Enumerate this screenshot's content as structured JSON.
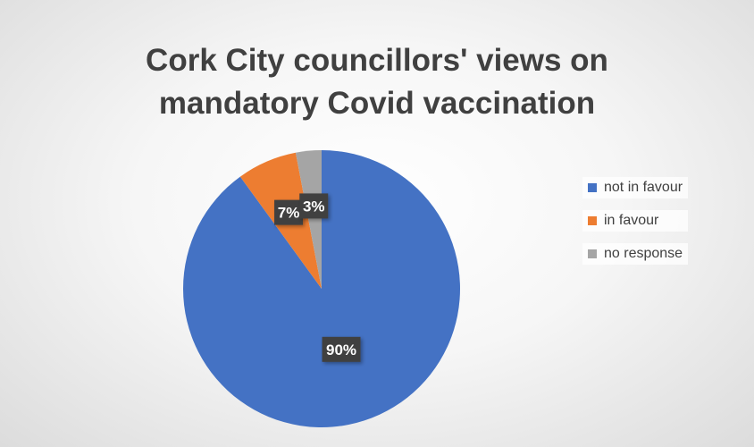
{
  "chart_data": {
    "type": "pie",
    "title": [
      "Cork City councillors' views on",
      "mandatory Covid vaccination"
    ],
    "slices": [
      {
        "label": "not in favour",
        "value": 90,
        "display": "90%",
        "color": "#4472c4"
      },
      {
        "label": "in favour",
        "value": 7,
        "display": "7%",
        "color": "#ed7d31"
      },
      {
        "label": "no response",
        "value": 3,
        "display": "3%",
        "color": "#a5a5a5"
      }
    ],
    "legend_position": "right"
  }
}
